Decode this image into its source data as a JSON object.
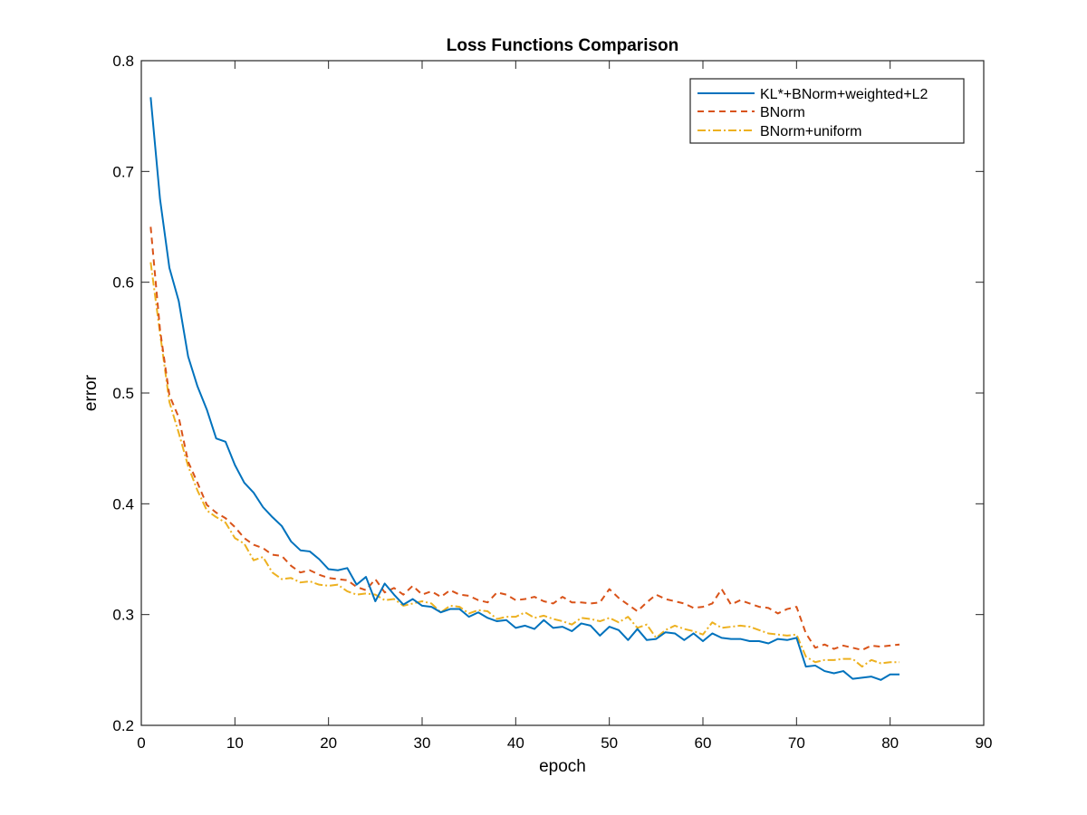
{
  "chart_data": {
    "type": "line",
    "title": "Loss Functions Comparison",
    "xlabel": "epoch",
    "ylabel": "error",
    "xlim": [
      0,
      90
    ],
    "ylim": [
      0.2,
      0.8
    ],
    "xticks": [
      "0",
      "10",
      "20",
      "30",
      "40",
      "50",
      "60",
      "70",
      "80",
      "90"
    ],
    "yticks": [
      "0.2",
      "0.3",
      "0.4",
      "0.5",
      "0.6",
      "0.7",
      "0.8"
    ],
    "grid": false,
    "legend_position": "top-right",
    "x_start": 1,
    "series": [
      {
        "name": "KL*+BNorm+weighted+L2",
        "color": "#0072BD",
        "line_style": "solid",
        "values": [
          0.767,
          0.675,
          0.613,
          0.583,
          0.533,
          0.506,
          0.485,
          0.459,
          0.456,
          0.435,
          0.419,
          0.41,
          0.397,
          0.388,
          0.38,
          0.366,
          0.358,
          0.357,
          0.35,
          0.341,
          0.34,
          0.342,
          0.327,
          0.334,
          0.312,
          0.328,
          0.318,
          0.309,
          0.314,
          0.308,
          0.307,
          0.302,
          0.305,
          0.305,
          0.298,
          0.302,
          0.297,
          0.294,
          0.295,
          0.288,
          0.29,
          0.287,
          0.295,
          0.288,
          0.289,
          0.285,
          0.292,
          0.29,
          0.281,
          0.289,
          0.286,
          0.277,
          0.287,
          0.277,
          0.278,
          0.284,
          0.283,
          0.277,
          0.283,
          0.276,
          0.283,
          0.279,
          0.278,
          0.278,
          0.276,
          0.276,
          0.274,
          0.278,
          0.277,
          0.279,
          0.253,
          0.254,
          0.249,
          0.247,
          0.249,
          0.242,
          0.243,
          0.244,
          0.241,
          0.246,
          0.246
        ]
      },
      {
        "name": "BNorm",
        "color": "#D95319",
        "line_style": "dashed",
        "values": [
          0.65,
          0.557,
          0.498,
          0.478,
          0.438,
          0.419,
          0.399,
          0.392,
          0.387,
          0.379,
          0.369,
          0.363,
          0.36,
          0.354,
          0.353,
          0.344,
          0.338,
          0.34,
          0.336,
          0.333,
          0.332,
          0.331,
          0.325,
          0.322,
          0.332,
          0.32,
          0.324,
          0.318,
          0.326,
          0.318,
          0.321,
          0.316,
          0.322,
          0.318,
          0.317,
          0.313,
          0.311,
          0.32,
          0.318,
          0.313,
          0.314,
          0.316,
          0.312,
          0.31,
          0.316,
          0.311,
          0.311,
          0.31,
          0.311,
          0.323,
          0.315,
          0.309,
          0.303,
          0.311,
          0.318,
          0.314,
          0.312,
          0.31,
          0.306,
          0.307,
          0.31,
          0.323,
          0.309,
          0.313,
          0.31,
          0.307,
          0.306,
          0.301,
          0.305,
          0.307,
          0.283,
          0.27,
          0.273,
          0.269,
          0.272,
          0.27,
          0.268,
          0.272,
          0.271,
          0.272,
          0.273
        ]
      },
      {
        "name": "BNorm+uniform",
        "color": "#EDB120",
        "line_style": "dashdot",
        "values": [
          0.618,
          0.554,
          0.492,
          0.464,
          0.434,
          0.412,
          0.394,
          0.388,
          0.383,
          0.369,
          0.364,
          0.349,
          0.352,
          0.338,
          0.332,
          0.333,
          0.329,
          0.33,
          0.327,
          0.326,
          0.327,
          0.321,
          0.318,
          0.319,
          0.318,
          0.313,
          0.314,
          0.308,
          0.31,
          0.312,
          0.31,
          0.302,
          0.308,
          0.307,
          0.301,
          0.304,
          0.303,
          0.296,
          0.298,
          0.298,
          0.302,
          0.297,
          0.299,
          0.296,
          0.294,
          0.291,
          0.297,
          0.296,
          0.294,
          0.297,
          0.293,
          0.298,
          0.288,
          0.291,
          0.279,
          0.286,
          0.29,
          0.287,
          0.285,
          0.282,
          0.293,
          0.288,
          0.289,
          0.29,
          0.289,
          0.286,
          0.283,
          0.282,
          0.281,
          0.282,
          0.262,
          0.257,
          0.259,
          0.259,
          0.26,
          0.26,
          0.253,
          0.259,
          0.256,
          0.257,
          0.257
        ]
      }
    ]
  }
}
